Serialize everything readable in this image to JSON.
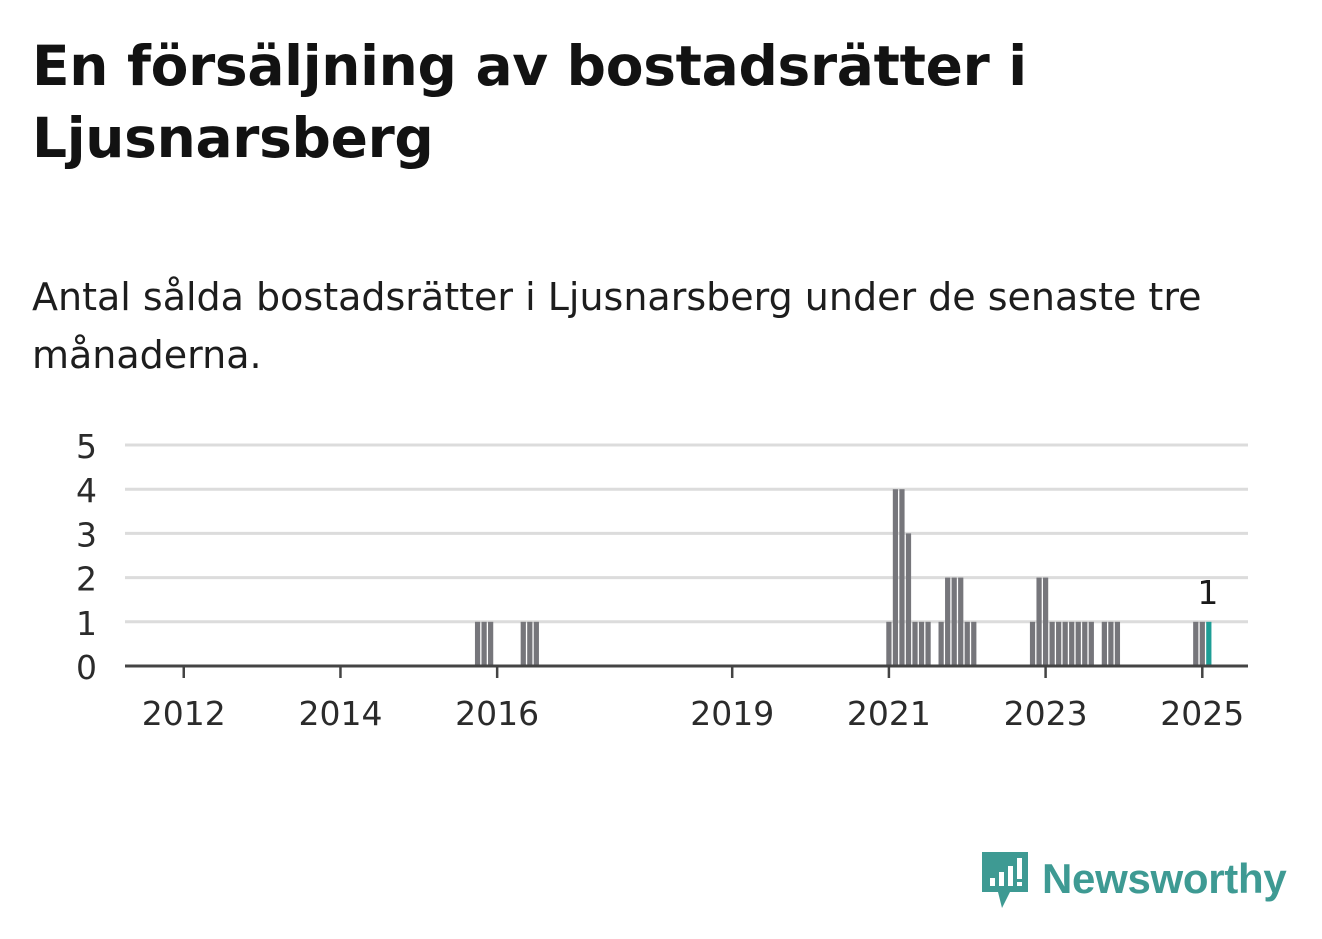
{
  "title": "En försäljning av bostadsrätter i Ljusnarsberg",
  "subtitle": "Antal sålda bostadsrätter i Ljusnarsberg under de senaste tre månaderna.",
  "colors": {
    "bar": "#76767b",
    "highlight": "#1e9e96",
    "grid": "#dcdcdc",
    "axis": "#444444",
    "brand": "#3e9a93"
  },
  "brand": {
    "name": "Newsworthy",
    "icon": "newsworthy-logo-icon"
  },
  "chart_data": {
    "type": "bar",
    "title": "",
    "xlabel": "",
    "ylabel": "",
    "ylim": [
      0,
      5
    ],
    "yticks": [
      0,
      1,
      2,
      3,
      4,
      5
    ],
    "xticks": [
      "2012",
      "2014",
      "2016",
      "2019",
      "2021",
      "2023",
      "2025"
    ],
    "xrange": [
      "2011-04",
      "2025-08"
    ],
    "grid": true,
    "series": [
      {
        "x": [
          "2015-10",
          "2015-11",
          "2015-12",
          "2016-05",
          "2016-06",
          "2016-07",
          "2021-01",
          "2021-02",
          "2021-03",
          "2021-04",
          "2021-05",
          "2021-06",
          "2021-07",
          "2021-09",
          "2021-10",
          "2021-11",
          "2021-12",
          "2022-01",
          "2022-02",
          "2022-11",
          "2022-12",
          "2023-01",
          "2023-02",
          "2023-03",
          "2023-04",
          "2023-05",
          "2023-06",
          "2023-07",
          "2023-08",
          "2023-10",
          "2023-11",
          "2023-12",
          "2024-12",
          "2025-01"
        ],
        "values": [
          1,
          1,
          1,
          1,
          1,
          1,
          1,
          4,
          4,
          3,
          1,
          1,
          1,
          1,
          2,
          2,
          2,
          1,
          1,
          1,
          2,
          2,
          1,
          1,
          1,
          1,
          1,
          1,
          1,
          1,
          1,
          1,
          1,
          1
        ]
      }
    ],
    "highlight": {
      "x": "2025-02",
      "value": 1,
      "label": "1"
    }
  }
}
